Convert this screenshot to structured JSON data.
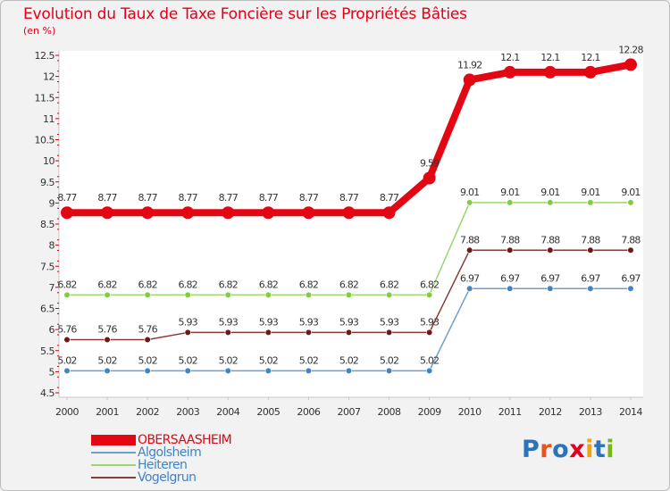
{
  "title": "Evolution du Taux de Taxe Foncière sur les Propriétés Bâties",
  "unit_label": "(en %)",
  "brand": {
    "name": "Proxiti",
    "letter_colors": [
      "#2b74b9",
      "#e8541b",
      "#2b74b9",
      "#e3001b",
      "#f4a300",
      "#2b74b9",
      "#7ab51d"
    ]
  },
  "chart_data": {
    "type": "line",
    "title": "Evolution du Taux de Taxe Foncière sur les Propriétés Bâties",
    "ylabel": "(en %)",
    "xlabel": "",
    "x": [
      "2000",
      "2001",
      "2002",
      "2003",
      "2004",
      "2005",
      "2006",
      "2007",
      "2008",
      "2009",
      "2010",
      "2011",
      "2012",
      "2013",
      "2014"
    ],
    "ylim": [
      4.5,
      12.5
    ],
    "yticks": [
      "4.5",
      "5",
      "5.5",
      "6",
      "6.5",
      "7",
      "7.5",
      "8",
      "8.5",
      "9",
      "9.5",
      "10",
      "10.5",
      "11",
      "11.5",
      "12",
      "12.5"
    ],
    "grid": false,
    "legend_position": "bottom-left",
    "series": [
      {
        "name": "Algolsheim",
        "color": "#6a9fd0",
        "point_color": "#3f84c4",
        "highlight": false,
        "values": [
          5.02,
          5.02,
          5.02,
          5.02,
          5.02,
          5.02,
          5.02,
          5.02,
          5.02,
          5.02,
          6.97,
          6.97,
          6.97,
          6.97,
          6.97
        ],
        "labels": [
          "5.02",
          "5.02",
          "5.02",
          "5.02",
          "5.02",
          "5.02",
          "5.02",
          "5.02",
          "5.02",
          "5.02",
          "6.97",
          "6.97",
          "6.97",
          "6.97",
          "6.97"
        ]
      },
      {
        "name": "Vogelgrun",
        "color": "#8b3a3a",
        "point_color": "#6b1a1a",
        "highlight": false,
        "values": [
          5.76,
          5.76,
          5.76,
          5.93,
          5.93,
          5.93,
          5.93,
          5.93,
          5.93,
          5.93,
          7.88,
          7.88,
          7.88,
          7.88,
          7.88
        ],
        "labels": [
          "5.76",
          "5.76",
          "5.76",
          "5.93",
          "5.93",
          "5.93",
          "5.93",
          "5.93",
          "5.93",
          "5.93",
          "7.88",
          "7.88",
          "7.88",
          "7.88",
          "7.88"
        ]
      },
      {
        "name": "Heiteren",
        "color": "#9ad66a",
        "point_color": "#82cc44",
        "highlight": false,
        "values": [
          6.82,
          6.82,
          6.82,
          6.82,
          6.82,
          6.82,
          6.82,
          6.82,
          6.82,
          6.82,
          9.01,
          9.01,
          9.01,
          9.01,
          9.01
        ],
        "labels": [
          "6.82",
          "6.82",
          "6.82",
          "6.82",
          "6.82",
          "6.82",
          "6.82",
          "6.82",
          "6.82",
          "6.82",
          "9.01",
          "9.01",
          "9.01",
          "9.01",
          "9.01"
        ]
      },
      {
        "name": "OBERSAASHEIM",
        "color": "#e30613",
        "point_color": "#e30613",
        "highlight": true,
        "values": [
          8.77,
          8.77,
          8.77,
          8.77,
          8.77,
          8.77,
          8.77,
          8.77,
          8.77,
          9.59,
          11.92,
          12.1,
          12.1,
          12.1,
          12.28
        ],
        "labels": [
          "8.77",
          "8.77",
          "8.77",
          "8.77",
          "8.77",
          "8.77",
          "8.77",
          "8.77",
          "8.77",
          "9.59",
          "11.92",
          "12.1",
          "12.1",
          "12.1",
          "12.28"
        ]
      }
    ],
    "legend_order": [
      "OBERSAASHEIM",
      "Algolsheim",
      "Heiteren",
      "Vogelgrun"
    ]
  }
}
